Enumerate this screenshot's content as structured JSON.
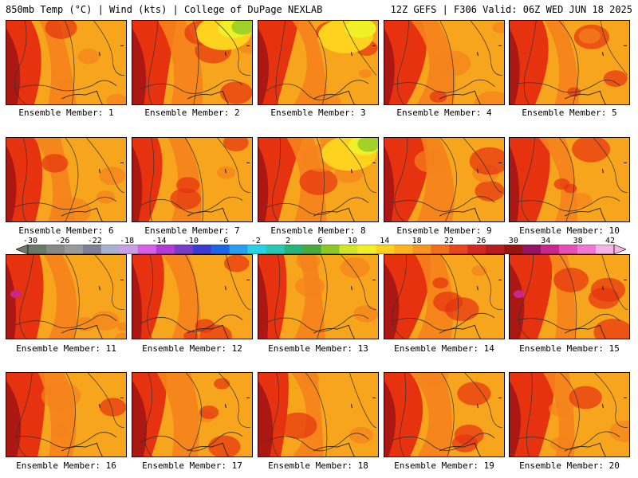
{
  "header": {
    "left": "850mb Temp (°C) | Wind (kts) | College of DuPage NEXLAB",
    "right": "12Z GEFS | F306 Valid: 06Z WED JUN 18 2025"
  },
  "members": [
    {
      "label": "Ensemble Member: 1"
    },
    {
      "label": "Ensemble Member: 2"
    },
    {
      "label": "Ensemble Member: 3"
    },
    {
      "label": "Ensemble Member: 4"
    },
    {
      "label": "Ensemble Member: 5"
    },
    {
      "label": "Ensemble Member: 6"
    },
    {
      "label": "Ensemble Member: 7"
    },
    {
      "label": "Ensemble Member: 8"
    },
    {
      "label": "Ensemble Member: 9"
    },
    {
      "label": "Ensemble Member: 10"
    },
    {
      "label": "Ensemble Member: 11"
    },
    {
      "label": "Ensemble Member: 12"
    },
    {
      "label": "Ensemble Member: 13"
    },
    {
      "label": "Ensemble Member: 14"
    },
    {
      "label": "Ensemble Member: 15"
    },
    {
      "label": "Ensemble Member: 16"
    },
    {
      "label": "Ensemble Member: 17"
    },
    {
      "label": "Ensemble Member: 18"
    },
    {
      "label": "Ensemble Member: 19"
    },
    {
      "label": "Ensemble Member: 20"
    }
  ],
  "colorbar": {
    "labels": [
      "-30",
      "-26",
      "-22",
      "-18",
      "-14",
      "-10",
      "-6",
      "-2",
      "2",
      "6",
      "10",
      "14",
      "18",
      "22",
      "26",
      "30",
      "34",
      "38",
      "42"
    ],
    "colors": [
      "#6b7a68",
      "#888888",
      "#9a9a9a",
      "#7f7f9a",
      "#aab0d0",
      "#c9a0e6",
      "#d760e8",
      "#b43cd6",
      "#7a3cc8",
      "#3c3cd2",
      "#1e64e6",
      "#28a0f0",
      "#28d2e6",
      "#28c8b4",
      "#28b478",
      "#46aa3c",
      "#8cc828",
      "#d2e628",
      "#f0f028",
      "#ffd21e",
      "#ffb41e",
      "#f7961e",
      "#f0701e",
      "#e8461e",
      "#d2281e",
      "#b41e1e",
      "#961414",
      "#961464",
      "#c8288c",
      "#e650b4",
      "#f078d2",
      "#f5b4e6"
    ],
    "colormap": {
      "hot": "#e6320f",
      "warm": "#f5821c",
      "mild": "#f7a51c",
      "cool": "#ffd21e",
      "cold": "#f0f028",
      "chilly": "#a0d228",
      "dark": "#a01414",
      "purple": "#c8288c"
    }
  }
}
